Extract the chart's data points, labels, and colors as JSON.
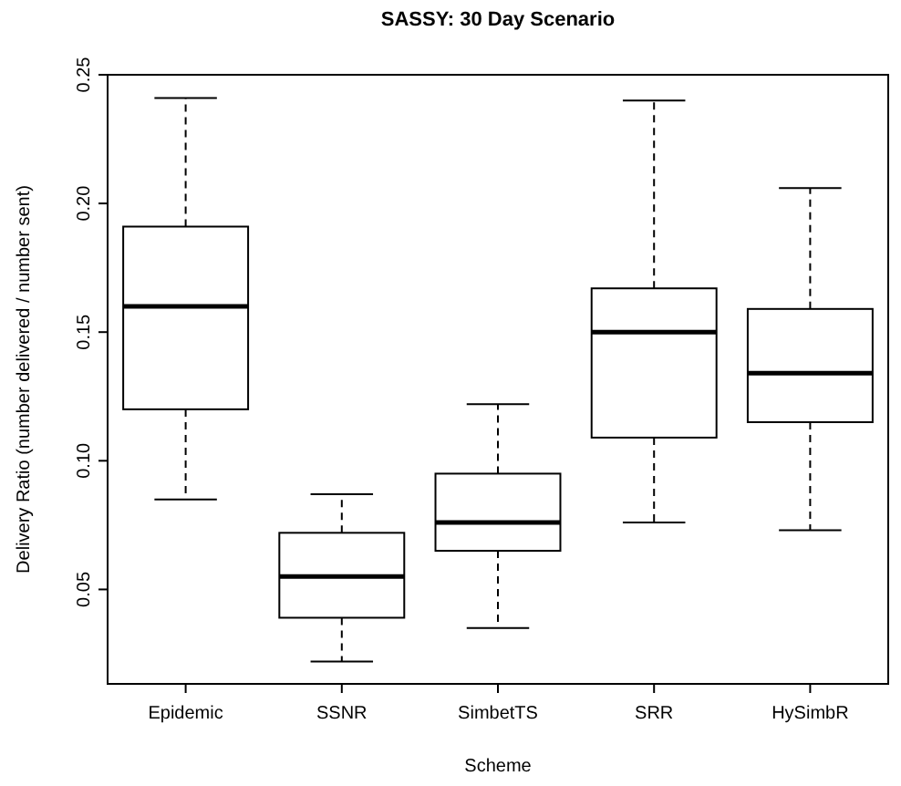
{
  "chart_data": {
    "type": "box",
    "title": "SASSY: 30 Day Scenario",
    "xlabel": "Scheme",
    "ylabel": "Delivery Ratio (number delivered / number sent)",
    "categories": [
      "Epidemic",
      "SSNR",
      "SimbetTS",
      "SRR",
      "HySimbR"
    ],
    "boxes": [
      {
        "low": 0.085,
        "q1": 0.12,
        "median": 0.16,
        "q3": 0.191,
        "high": 0.241
      },
      {
        "low": 0.022,
        "q1": 0.039,
        "median": 0.055,
        "q3": 0.072,
        "high": 0.087
      },
      {
        "low": 0.035,
        "q1": 0.065,
        "median": 0.076,
        "q3": 0.095,
        "high": 0.122
      },
      {
        "low": 0.076,
        "q1": 0.109,
        "median": 0.15,
        "q3": 0.167,
        "high": 0.24
      },
      {
        "low": 0.073,
        "q1": 0.115,
        "median": 0.134,
        "q3": 0.159,
        "high": 0.206
      }
    ],
    "color": "#ffffff",
    "ylim": [
      0.0133,
      0.25
    ],
    "yticks": [
      {
        "value": 0.05,
        "label": "0.05"
      },
      {
        "value": 0.1,
        "label": "0.10"
      },
      {
        "value": 0.15,
        "label": "0.15"
      },
      {
        "value": 0.2,
        "label": "0.20"
      },
      {
        "value": 0.25,
        "label": "0.25"
      }
    ],
    "grid": false
  }
}
